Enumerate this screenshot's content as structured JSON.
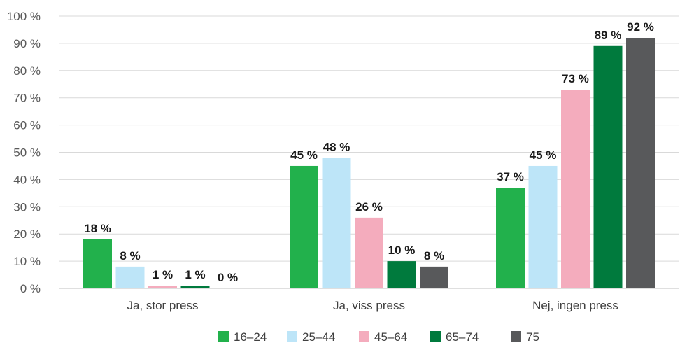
{
  "chart_data": {
    "type": "bar",
    "categories": [
      "Ja, stor press",
      "Ja, viss press",
      "Nej, ingen press"
    ],
    "series": [
      {
        "name": "16–24",
        "color": "#22b14c",
        "values": [
          18,
          45,
          37
        ],
        "labels": [
          "18 %",
          "45 %",
          "37 %"
        ]
      },
      {
        "name": "25–44",
        "color": "#bde5f8",
        "values": [
          8,
          48,
          45
        ],
        "labels": [
          "8 %",
          "48 %",
          "45 %"
        ]
      },
      {
        "name": "45–64",
        "color": "#f4acbd",
        "values": [
          1,
          26,
          73
        ],
        "labels": [
          "1 %",
          "26 %",
          "73 %"
        ]
      },
      {
        "name": "65–74",
        "color": "#007a3d",
        "values": [
          1,
          10,
          89
        ],
        "labels": [
          "1 %",
          "10 %",
          "89 %"
        ]
      },
      {
        "name": "75",
        "color": "#58595b",
        "values": [
          0,
          8,
          92
        ],
        "labels": [
          "0 %",
          "8 %",
          "92 %"
        ]
      }
    ],
    "ylim": [
      0,
      100
    ],
    "yticks": [
      "0 %",
      "10 %",
      "20 %",
      "30 %",
      "40 %",
      "50 %",
      "60 %",
      "70 %",
      "80 %",
      "90 %",
      "100 %"
    ],
    "grid": true,
    "legend": "bottom"
  }
}
